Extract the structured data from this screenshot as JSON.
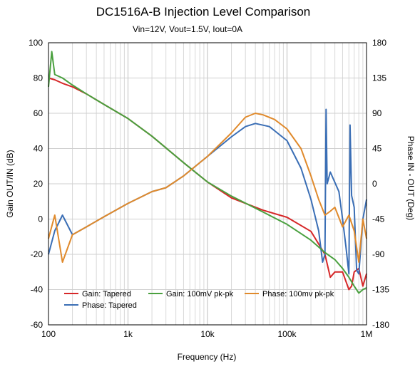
{
  "chart_data": {
    "type": "line",
    "title": "DC1516A-B Injection Level Comparison",
    "subtitle": "Vin=12V, Vout=1.5V, Iout=0A",
    "xlabel": "Frequency (Hz)",
    "ylabel_left": "Gain OUT/IN (dB)",
    "ylabel_right": "Phase IN - OUT (Deg)",
    "x_scale": "log",
    "xlim": [
      100,
      1000000
    ],
    "ylim_left": [
      -60,
      100
    ],
    "ylim_right": [
      -180,
      180
    ],
    "grid": true,
    "legend_position": "bottom-left",
    "x_ticks": [
      {
        "value": 100,
        "label": "100"
      },
      {
        "value": 1000,
        "label": "1k"
      },
      {
        "value": 10000,
        "label": "10k"
      },
      {
        "value": 100000,
        "label": "100k"
      },
      {
        "value": 1000000,
        "label": "1M"
      }
    ],
    "y_ticks_left": [
      "-60",
      "-40",
      "-20",
      "0",
      "20",
      "40",
      "60",
      "80",
      "100"
    ],
    "y_ticks_right": [
      "-180",
      "-135",
      "-90",
      "-45",
      "0",
      "45",
      "90",
      "135",
      "180"
    ],
    "series": [
      {
        "name": "Gain: Tapered",
        "axis": "left",
        "color": "#d62728",
        "x": [
          100,
          120,
          150,
          200,
          300,
          500,
          1000,
          2000,
          5000,
          10000,
          20000,
          50000,
          100000,
          200000,
          300000,
          350000,
          400000,
          500000,
          600000,
          650000,
          700000,
          800000,
          900000,
          1000000
        ],
        "y": [
          80,
          79,
          77,
          75,
          71,
          65,
          57,
          47,
          32,
          21,
          12,
          5,
          1,
          -7,
          -20,
          -33,
          -30,
          -30,
          -40,
          -38,
          -30,
          -28,
          -38,
          -31
        ]
      },
      {
        "name": "Phase: Tapered",
        "axis": "right",
        "color": "#3a6eb5",
        "x": [
          100,
          120,
          150,
          200,
          300,
          500,
          1000,
          2000,
          3000,
          5000,
          10000,
          20000,
          30000,
          40000,
          60000,
          100000,
          150000,
          200000,
          250000,
          280000,
          300000,
          310000,
          320000,
          350000,
          450000,
          500000,
          550000,
          600000,
          620000,
          650000,
          700000,
          750000,
          800000,
          900000,
          1000000
        ],
        "y": [
          -90,
          -60,
          -40,
          -65,
          -55,
          -42,
          -25,
          -10,
          -5,
          10,
          35,
          60,
          73,
          77,
          73,
          55,
          20,
          -20,
          -60,
          -100,
          -90,
          95,
          0,
          15,
          -10,
          -45,
          -80,
          -115,
          75,
          -15,
          -30,
          -110,
          -115,
          -45,
          -20
        ]
      },
      {
        "name": "Gain: 100mV pk-pk",
        "axis": "left",
        "color": "#4aa03f",
        "x": [
          100,
          110,
          120,
          150,
          200,
          300,
          500,
          1000,
          2000,
          5000,
          10000,
          20000,
          50000,
          100000,
          200000,
          300000,
          400000,
          500000,
          600000,
          700000,
          800000,
          900000,
          1000000
        ],
        "y": [
          75,
          95,
          82,
          80,
          76,
          71,
          65,
          57,
          47,
          32,
          21,
          13,
          4,
          -3,
          -12,
          -19,
          -23,
          -28,
          -33,
          -38,
          -42,
          -40,
          -39
        ]
      },
      {
        "name": "Phase: 100mv pk-pk",
        "axis": "right",
        "color": "#e08a2c",
        "x": [
          100,
          120,
          150,
          200,
          300,
          500,
          1000,
          2000,
          3000,
          5000,
          10000,
          20000,
          30000,
          40000,
          50000,
          70000,
          100000,
          150000,
          200000,
          250000,
          300000,
          350000,
          400000,
          500000,
          600000,
          700000,
          800000,
          900000,
          1000000
        ],
        "y": [
          -70,
          -40,
          -100,
          -65,
          -55,
          -42,
          -25,
          -10,
          -5,
          10,
          35,
          65,
          85,
          90,
          88,
          82,
          70,
          45,
          10,
          -20,
          -40,
          -35,
          -30,
          -55,
          -40,
          -60,
          -100,
          -45,
          -70
        ]
      }
    ]
  }
}
